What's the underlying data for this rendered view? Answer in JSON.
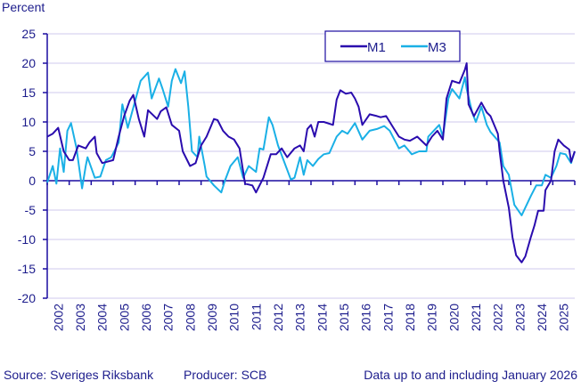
{
  "chart_data": {
    "type": "line",
    "title": "",
    "ylabel": "Percent",
    "xlabel": "",
    "ylim": [
      -20,
      25
    ],
    "yticks": [
      -20,
      -15,
      -10,
      -5,
      0,
      5,
      10,
      15,
      20,
      25
    ],
    "xlim": [
      "2002-01",
      "2026-01"
    ],
    "xtick_labels": [
      "2002",
      "2003",
      "2004",
      "2005",
      "2006",
      "2007",
      "2008",
      "2009",
      "2010",
      "2011",
      "2012",
      "2013",
      "2014",
      "2015",
      "2016",
      "2017",
      "2018",
      "2019",
      "2020",
      "2021",
      "2022",
      "2023",
      "2024",
      "2025"
    ],
    "grid": "horizontal",
    "legend_position": "top-right",
    "series": [
      {
        "name": "M1",
        "color": "#2a0cae",
        "points": [
          [
            "2002-01",
            7.5
          ],
          [
            "2002-04",
            8
          ],
          [
            "2002-07",
            9
          ],
          [
            "2002-10",
            5
          ],
          [
            "2003-01",
            3.5
          ],
          [
            "2003-03",
            3.5
          ],
          [
            "2003-06",
            6
          ],
          [
            "2003-10",
            5.5
          ],
          [
            "2003-12",
            6.5
          ],
          [
            "2004-03",
            7.5
          ],
          [
            "2004-04",
            4.7
          ],
          [
            "2004-07",
            3
          ],
          [
            "2005-01",
            3.5
          ],
          [
            "2005-04",
            7.5
          ],
          [
            "2005-07",
            11
          ],
          [
            "2005-10",
            13.6
          ],
          [
            "2005-12",
            14.6
          ],
          [
            "2006-03",
            10.5
          ],
          [
            "2006-06",
            7.5
          ],
          [
            "2006-08",
            12
          ],
          [
            "2007-01",
            10.5
          ],
          [
            "2007-03",
            11.8
          ],
          [
            "2007-06",
            12.5
          ],
          [
            "2007-09",
            9.5
          ],
          [
            "2008-01",
            8.5
          ],
          [
            "2008-03",
            5
          ],
          [
            "2008-07",
            2.5
          ],
          [
            "2008-10",
            3
          ],
          [
            "2009-01",
            6
          ],
          [
            "2009-04",
            7.5
          ],
          [
            "2009-08",
            10.5
          ],
          [
            "2009-10",
            10.3
          ],
          [
            "2010-01",
            8.5
          ],
          [
            "2010-04",
            7.5
          ],
          [
            "2010-07",
            7
          ],
          [
            "2010-10",
            5.5
          ],
          [
            "2011-01",
            -0.5
          ],
          [
            "2011-05",
            -0.8
          ],
          [
            "2011-07",
            -2
          ],
          [
            "2011-11",
            0.5
          ],
          [
            "2012-03",
            4.5
          ],
          [
            "2012-06",
            4.5
          ],
          [
            "2012-09",
            5.5
          ],
          [
            "2012-12",
            4
          ],
          [
            "2013-04",
            5.5
          ],
          [
            "2013-07",
            6
          ],
          [
            "2013-09",
            5
          ],
          [
            "2013-11",
            8.8
          ],
          [
            "2014-01",
            9.5
          ],
          [
            "2014-03",
            7.5
          ],
          [
            "2014-05",
            10
          ],
          [
            "2014-08",
            10
          ],
          [
            "2015-01",
            9.5
          ],
          [
            "2015-03",
            13.8
          ],
          [
            "2015-05",
            15.4
          ],
          [
            "2015-08",
            14.8
          ],
          [
            "2015-11",
            15
          ],
          [
            "2016-01",
            14
          ],
          [
            "2016-03",
            12.6
          ],
          [
            "2016-05",
            9.5
          ],
          [
            "2016-09",
            11.3
          ],
          [
            "2017-01",
            11
          ],
          [
            "2017-03",
            10.8
          ],
          [
            "2017-06",
            11
          ],
          [
            "2017-10",
            9
          ],
          [
            "2018-01",
            7.5
          ],
          [
            "2018-04",
            7
          ],
          [
            "2018-07",
            6.8
          ],
          [
            "2018-11",
            7.5
          ],
          [
            "2019-04",
            6
          ],
          [
            "2019-07",
            7.5
          ],
          [
            "2019-10",
            8.5
          ],
          [
            "2020-01",
            7
          ],
          [
            "2020-03",
            14
          ],
          [
            "2020-06",
            17
          ],
          [
            "2020-10",
            16.6
          ],
          [
            "2021-01",
            18.9
          ],
          [
            "2021-02",
            20
          ],
          [
            "2021-03",
            13
          ],
          [
            "2021-06",
            11
          ],
          [
            "2021-10",
            13.3
          ],
          [
            "2022-01",
            11.6
          ],
          [
            "2022-03",
            11
          ],
          [
            "2022-07",
            8
          ],
          [
            "2022-08",
            5
          ],
          [
            "2022-10",
            0
          ],
          [
            "2023-01",
            -4.6
          ],
          [
            "2023-03",
            -9.6
          ],
          [
            "2023-05",
            -12.7
          ],
          [
            "2023-08",
            -13.9
          ],
          [
            "2023-10",
            -12.9
          ],
          [
            "2024-01",
            -9.6
          ],
          [
            "2024-03",
            -7.6
          ],
          [
            "2024-05",
            -5.1
          ],
          [
            "2024-08",
            -5.1
          ],
          [
            "2024-09",
            -1.6
          ],
          [
            "2024-12",
            0
          ],
          [
            "2025-02",
            5
          ],
          [
            "2025-04",
            7
          ],
          [
            "2025-07",
            6
          ],
          [
            "2025-10",
            5.3
          ],
          [
            "2025-11",
            3.2
          ],
          [
            "2026-01",
            5
          ]
        ]
      },
      {
        "name": "M3",
        "color": "#1ab0e6",
        "points": [
          [
            "2002-01",
            -0.3
          ],
          [
            "2002-04",
            2.5
          ],
          [
            "2002-06",
            -0.5
          ],
          [
            "2002-08",
            5.5
          ],
          [
            "2002-10",
            1.5
          ],
          [
            "2002-12",
            8.5
          ],
          [
            "2003-02",
            9.8
          ],
          [
            "2003-05",
            5.5
          ],
          [
            "2003-08",
            -1.3
          ],
          [
            "2003-10",
            2.5
          ],
          [
            "2003-11",
            4
          ],
          [
            "2004-03",
            0.5
          ],
          [
            "2004-06",
            0.7
          ],
          [
            "2004-09",
            3.5
          ],
          [
            "2004-12",
            4
          ],
          [
            "2005-04",
            6.5
          ],
          [
            "2005-06",
            13
          ],
          [
            "2005-09",
            9
          ],
          [
            "2006-01",
            13.6
          ],
          [
            "2006-04",
            17
          ],
          [
            "2006-08",
            18.4
          ],
          [
            "2006-10",
            14
          ],
          [
            "2007-02",
            17.4
          ],
          [
            "2007-04",
            15.6
          ],
          [
            "2007-07",
            12.6
          ],
          [
            "2007-09",
            17
          ],
          [
            "2007-11",
            19
          ],
          [
            "2008-02",
            16.6
          ],
          [
            "2008-04",
            18.6
          ],
          [
            "2008-06",
            12.6
          ],
          [
            "2008-08",
            5
          ],
          [
            "2008-11",
            4
          ],
          [
            "2008-12",
            7.5
          ],
          [
            "2009-03",
            2.5
          ],
          [
            "2009-04",
            0.7
          ],
          [
            "2009-08",
            -0.8
          ],
          [
            "2009-12",
            -2
          ],
          [
            "2010-02",
            0
          ],
          [
            "2010-05",
            2.5
          ],
          [
            "2010-09",
            4
          ],
          [
            "2010-12",
            0.5
          ],
          [
            "2011-03",
            2.5
          ],
          [
            "2011-07",
            1.5
          ],
          [
            "2011-09",
            5.5
          ],
          [
            "2011-11",
            5.3
          ],
          [
            "2012-02",
            10.8
          ],
          [
            "2012-04",
            9.5
          ],
          [
            "2012-07",
            6
          ],
          [
            "2012-10",
            3.5
          ],
          [
            "2013-02",
            0.2
          ],
          [
            "2013-04",
            0.5
          ],
          [
            "2013-07",
            4
          ],
          [
            "2013-09",
            1
          ],
          [
            "2013-11",
            3.5
          ],
          [
            "2014-02",
            2.5
          ],
          [
            "2014-05",
            3.7
          ],
          [
            "2014-08",
            4.5
          ],
          [
            "2014-11",
            4.7
          ],
          [
            "2015-03",
            7.5
          ],
          [
            "2015-06",
            8.5
          ],
          [
            "2015-09",
            8
          ],
          [
            "2016-01",
            9.8
          ],
          [
            "2016-05",
            7
          ],
          [
            "2016-09",
            8.5
          ],
          [
            "2017-01",
            8.8
          ],
          [
            "2017-05",
            9.3
          ],
          [
            "2017-08",
            8.5
          ],
          [
            "2018-01",
            5.5
          ],
          [
            "2018-04",
            6
          ],
          [
            "2018-08",
            4.5
          ],
          [
            "2018-12",
            5
          ],
          [
            "2019-04",
            5
          ],
          [
            "2019-05",
            7.5
          ],
          [
            "2019-08",
            8.5
          ],
          [
            "2019-11",
            9.5
          ],
          [
            "2020-01",
            7.5
          ],
          [
            "2020-04",
            14
          ],
          [
            "2020-06",
            15.6
          ],
          [
            "2020-10",
            14
          ],
          [
            "2021-01",
            17.6
          ],
          [
            "2021-02",
            15.6
          ],
          [
            "2021-05",
            11.6
          ],
          [
            "2021-07",
            10
          ],
          [
            "2021-10",
            12.6
          ],
          [
            "2022-01",
            9.5
          ],
          [
            "2022-03",
            8.3
          ],
          [
            "2022-08",
            6.5
          ],
          [
            "2022-10",
            2.5
          ],
          [
            "2023-01",
            1
          ],
          [
            "2023-04",
            -4.1
          ],
          [
            "2023-08",
            -5.9
          ],
          [
            "2024-01",
            -2.6
          ],
          [
            "2024-04",
            -0.8
          ],
          [
            "2024-07",
            -0.8
          ],
          [
            "2024-09",
            1
          ],
          [
            "2024-12",
            0.5
          ],
          [
            "2025-03",
            2.5
          ],
          [
            "2025-05",
            4.7
          ],
          [
            "2025-08",
            4.5
          ],
          [
            "2025-11",
            3
          ],
          [
            "2026-01",
            5
          ]
        ]
      }
    ]
  },
  "footer": {
    "source": "Source: Sveriges Riksbank",
    "producer": "Producer: SCB",
    "data_note": "Data up to and including January 2026"
  },
  "colors": {
    "axis": "#1a0ca0",
    "grid": "#cfcaee",
    "text": "#1c1c8c"
  }
}
